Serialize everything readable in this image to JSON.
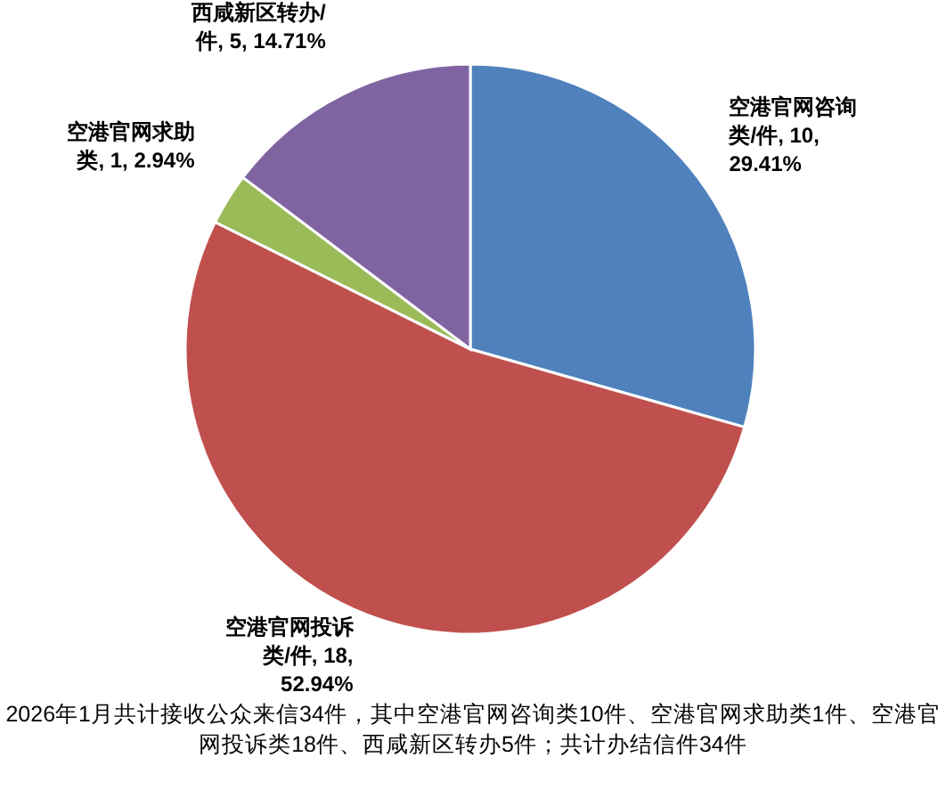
{
  "chart_data": {
    "type": "pie",
    "categories": [
      "空港官网咨询类/件",
      "空港官网投诉类/件",
      "空港官网求助类",
      "西咸新区转办/件"
    ],
    "values": [
      10,
      18,
      1,
      5
    ],
    "colors": [
      "#4f81bd",
      "#c0504d",
      "#9bbb59",
      "#8064a2"
    ],
    "value_labels": [
      "10, 29.41%",
      "18, 52.94%",
      "1, 2.94%",
      "5, 14.71%"
    ],
    "legend": false,
    "annotations": [
      "2026年1月共计接收公众来信34件，其中空港官网咨询类10件、空港官网求助类1件、空港官网投诉类18件、西咸新区转办5件；共计办结信件34件"
    ]
  }
}
